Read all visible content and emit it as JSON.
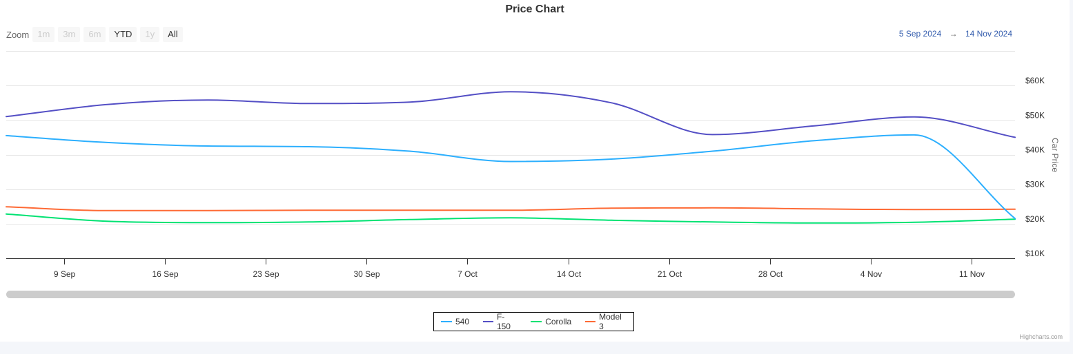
{
  "chart_data": {
    "type": "line",
    "title": "Price Chart",
    "ylabel": "Car Price",
    "xlabel": "",
    "x": [
      "2024-09-05",
      "2024-09-12",
      "2024-09-19",
      "2024-09-26",
      "2024-10-03",
      "2024-10-10",
      "2024-10-17",
      "2024-10-24",
      "2024-10-31",
      "2024-11-07",
      "2024-11-14"
    ],
    "xlim": [
      "2024-09-05",
      "2024-11-14"
    ],
    "ylim": [
      10000,
      70000
    ],
    "yticks": [
      10000,
      20000,
      30000,
      40000,
      50000,
      60000
    ],
    "ytick_labels": [
      "$10K",
      "$20K",
      "$30K",
      "$40K",
      "$50K",
      "$60K"
    ],
    "xticks": [
      "2024-09-09",
      "2024-09-16",
      "2024-09-23",
      "2024-09-30",
      "2024-10-07",
      "2024-10-14",
      "2024-10-21",
      "2024-10-28",
      "2024-11-04",
      "2024-11-11"
    ],
    "xtick_labels": [
      "9 Sep",
      "16 Sep",
      "23 Sep",
      "30 Sep",
      "7 Oct",
      "14 Oct",
      "21 Oct",
      "28 Oct",
      "4 Nov",
      "11 Nov"
    ],
    "grid": true,
    "legend": "bottom-center",
    "series": [
      {
        "name": "540",
        "color": "#2caffe",
        "values": [
          45500,
          43500,
          42500,
          42300,
          41000,
          38000,
          38700,
          41000,
          44000,
          45700,
          21500
        ]
      },
      {
        "name": "F-150",
        "color": "#544fc5",
        "values": [
          51000,
          54500,
          55800,
          54800,
          55200,
          58200,
          55000,
          45800,
          48300,
          50900,
          45000
        ]
      },
      {
        "name": "Corolla",
        "color": "#00e272",
        "values": [
          22800,
          20700,
          20300,
          20500,
          21200,
          21700,
          21000,
          20500,
          20200,
          20400,
          21300
        ]
      },
      {
        "name": "Model 3",
        "color": "#fe6a35",
        "values": [
          24900,
          23800,
          23800,
          23900,
          23900,
          23900,
          24500,
          24600,
          24300,
          24100,
          24200
        ]
      }
    ]
  },
  "zoom": {
    "label": "Zoom",
    "buttons": [
      {
        "label": "1m",
        "enabled": false
      },
      {
        "label": "3m",
        "enabled": false
      },
      {
        "label": "6m",
        "enabled": false
      },
      {
        "label": "YTD",
        "enabled": true
      },
      {
        "label": "1y",
        "enabled": false
      },
      {
        "label": "All",
        "enabled": true
      }
    ]
  },
  "range": {
    "from": "5 Sep 2024",
    "arrow": "→",
    "to": "14 Nov 2024"
  },
  "credits": "Highcharts.com"
}
